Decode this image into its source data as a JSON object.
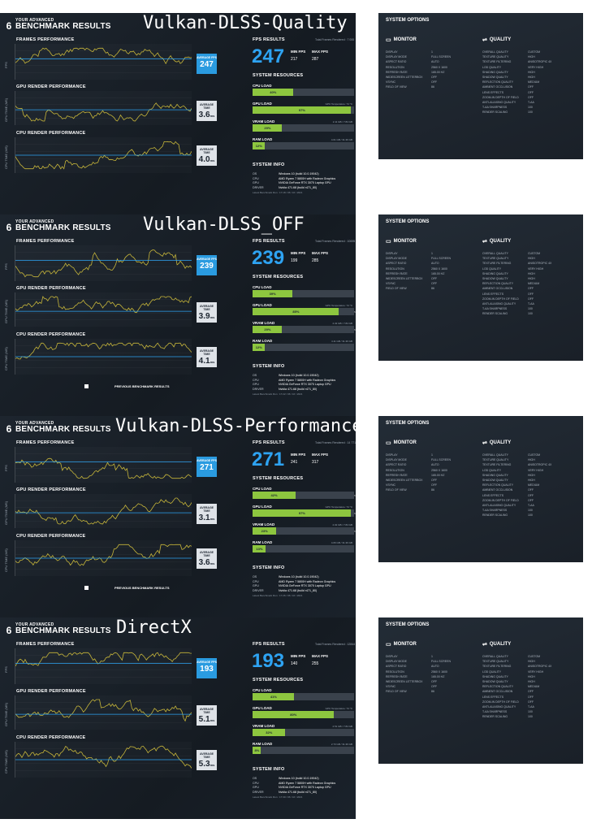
{
  "logo": {
    "small": "YOUR ADVANCED",
    "big": "BENCHMARK RESULTS",
    "mark": "6"
  },
  "labels": {
    "frames_perf": "FRAMES PERFORMANCE",
    "gpu_perf": "GPU RENDER PERFORMANCE",
    "cpu_perf": "CPU RENDER PERFORMANCE",
    "fps_results": "FPS RESULTS",
    "system_resources": "SYSTEM RESOURCES",
    "system_info": "SYSTEM INFO",
    "avg_fps": "AVERAGE FPS",
    "avg_time": "AVERAGE TIME",
    "min_fps": "MIN FPS",
    "max_fps": "MAX FPS",
    "fps_axis": "FPS",
    "gpu_axis": "GPU TIME (MS)",
    "cpu_axis": "CPU TIME (MS)",
    "cpu_load": "CPU LOAD",
    "gpu_load": "GPU LOAD",
    "vram_load": "VRAM LOAD",
    "ram_load": "RAM LOAD",
    "prev_results": "PREVIOUS BENCHMARK RESULTS",
    "system_options": "SYSTEM OPTIONS",
    "monitor": "MONITOR",
    "quality": "QUALITY",
    "ms": "ms"
  },
  "sysinfo": [
    {
      "k": "OS",
      "v": "Windows 10 (build 10.0.19042)"
    },
    {
      "k": "CPU",
      "v": "AMD Ryzen 7 5800H with Radeon Graphics"
    },
    {
      "k": "GPU",
      "v": "NVIDIA GeForce RTX 3070 Laptop GPU"
    },
    {
      "k": "DRIVER",
      "v": "Nvidia 471.68 (build r471_80)"
    }
  ],
  "monitor_opts": [
    {
      "k": "DISPLAY",
      "v": "1"
    },
    {
      "k": "DISPLAY MODE",
      "v": "FULL SCREEN"
    },
    {
      "k": "ASPECT RATIO",
      "v": "AUTO"
    },
    {
      "k": "RESOLUTION",
      "v": "2560 X 1600"
    },
    {
      "k": "REFRESH RATE",
      "v": "165.00 HZ"
    },
    {
      "k": "WIDESCREEN LETTERBOX",
      "v": "OFF"
    },
    {
      "k": "VSYNC",
      "v": "OFF"
    },
    {
      "k": "FIELD OF VIEW",
      "v": "86"
    }
  ],
  "quality_opts": [
    {
      "k": "OVERALL QUALITY",
      "v": "CUSTOM"
    },
    {
      "k": "TEXTURE QUALITY",
      "v": "HIGH"
    },
    {
      "k": "TEXTURE FILTERING",
      "v": "ANISOTROPIC 4X"
    },
    {
      "k": "LOD QUALITY",
      "v": "VERY HIGH"
    },
    {
      "k": "SHADING QUALITY",
      "v": "HIGH"
    },
    {
      "k": "SHADOW QUALITY",
      "v": "HIGH"
    },
    {
      "k": "REFLECTION QUALITY",
      "v": "MEDIUM"
    },
    {
      "k": "AMBIENT OCCLUSION",
      "v": "OFF"
    },
    {
      "k": "LENS EFFECTS",
      "v": "OFF"
    },
    {
      "k": "ZOOM-IN DEPTH OF FIELD",
      "v": "OFF"
    },
    {
      "k": "ANTI-ALIASING QUALITY",
      "v": "T-AA"
    },
    {
      "k": "T-AA SHARPNESS",
      "v": "100"
    },
    {
      "k": "RENDER SCALING",
      "v": "100"
    }
  ],
  "panels": [
    {
      "title": "Vulkan-DLSS-Quality",
      "avg_fps": "247",
      "min_fps": "217",
      "max_fps": "287",
      "gpu_time": "3.6",
      "cpu_time": "4.0",
      "frames": "Total Frames Rendered : 7 000",
      "cpu_load": {
        "pct": "40%",
        "v": 40,
        "side": "0%"
      },
      "gpu_load": {
        "pct": "97%",
        "v": 97,
        "side": "0%",
        "temp": "GPU Temperature: 74 °C"
      },
      "vram_load": {
        "pct": "29%",
        "v": 29,
        "side": "0%",
        "temp": "2.11 GB / 7.84 GB"
      },
      "ram_load": {
        "pct": "12%",
        "v": 12,
        "side": "0%",
        "temp": "4.01 GB / 31.36 GB"
      },
      "stamp": "Latest Benchmark Run : 17:18 / 06 / 16 / 2021",
      "prev": false
    },
    {
      "title": "Vulkan-DLSS_OFF",
      "avg_fps": "239",
      "min_fps": "199",
      "max_fps": "285",
      "gpu_time": "3.9",
      "cpu_time": "4.1",
      "frames": "Total Frames Rendered : 10695",
      "cpu_load": {
        "pct": "39%",
        "v": 39,
        "side": "0%"
      },
      "gpu_load": {
        "pct": "85%",
        "v": 85,
        "side": "<1%",
        "temp": "GPU Temperature: 74 °C"
      },
      "vram_load": {
        "pct": "29%",
        "v": 29,
        "side": "<1%",
        "temp": "2.32 GB / 7.84 GB"
      },
      "ram_load": {
        "pct": "12%",
        "v": 12,
        "side": "0%",
        "temp": "4.11 GB / 31.36 GB"
      },
      "stamp": "Latest Benchmark Run : 17:22 / 06 / 16 / 2021",
      "prev": true
    },
    {
      "title": "Vulkan-DLSS-Performance",
      "avg_fps": "271",
      "min_fps": "241",
      "max_fps": "317",
      "gpu_time": "3.1",
      "cpu_time": "3.6",
      "frames": "Total Frames Rendered : 14 771",
      "cpu_load": {
        "pct": "42%",
        "v": 42,
        "side": "<1%"
      },
      "gpu_load": {
        "pct": "97%",
        "v": 97,
        "side": "<1%",
        "temp": "GPU Temperature: 74 °C"
      },
      "vram_load": {
        "pct": "23%",
        "v": 23,
        "side": "<1%",
        "temp": "2.02 GB / 7.84 GB"
      },
      "ram_load": {
        "pct": "13%",
        "v": 13,
        "side": "0%",
        "temp": "4.06 GB / 31.36 GB"
      },
      "stamp": "Latest Benchmark Run : 17:26 / 06 / 16 / 2021",
      "prev": true
    },
    {
      "title": "DirectX",
      "avg_fps": "193",
      "min_fps": "140",
      "max_fps": "255",
      "gpu_time": "5.1",
      "cpu_time": "5.3",
      "frames": "Total Frames Rendered : 12844",
      "cpu_load": {
        "pct": "41%",
        "v": 41,
        "side": "0%"
      },
      "gpu_load": {
        "pct": "80%",
        "v": 80,
        "side": "0%",
        "temp": "GPU Temperature: 74 °C"
      },
      "vram_load": {
        "pct": "32%",
        "v": 32,
        "side": "0%",
        "temp": "2.51 GB / 7.84 GB"
      },
      "ram_load": {
        "pct": "8%",
        "v": 8,
        "side": "0%",
        "temp": "2.73 GB / 31.36 GB"
      },
      "stamp": "Latest Benchmark Run : 17:30 / 06 / 16 / 2021",
      "prev": false
    }
  ]
}
